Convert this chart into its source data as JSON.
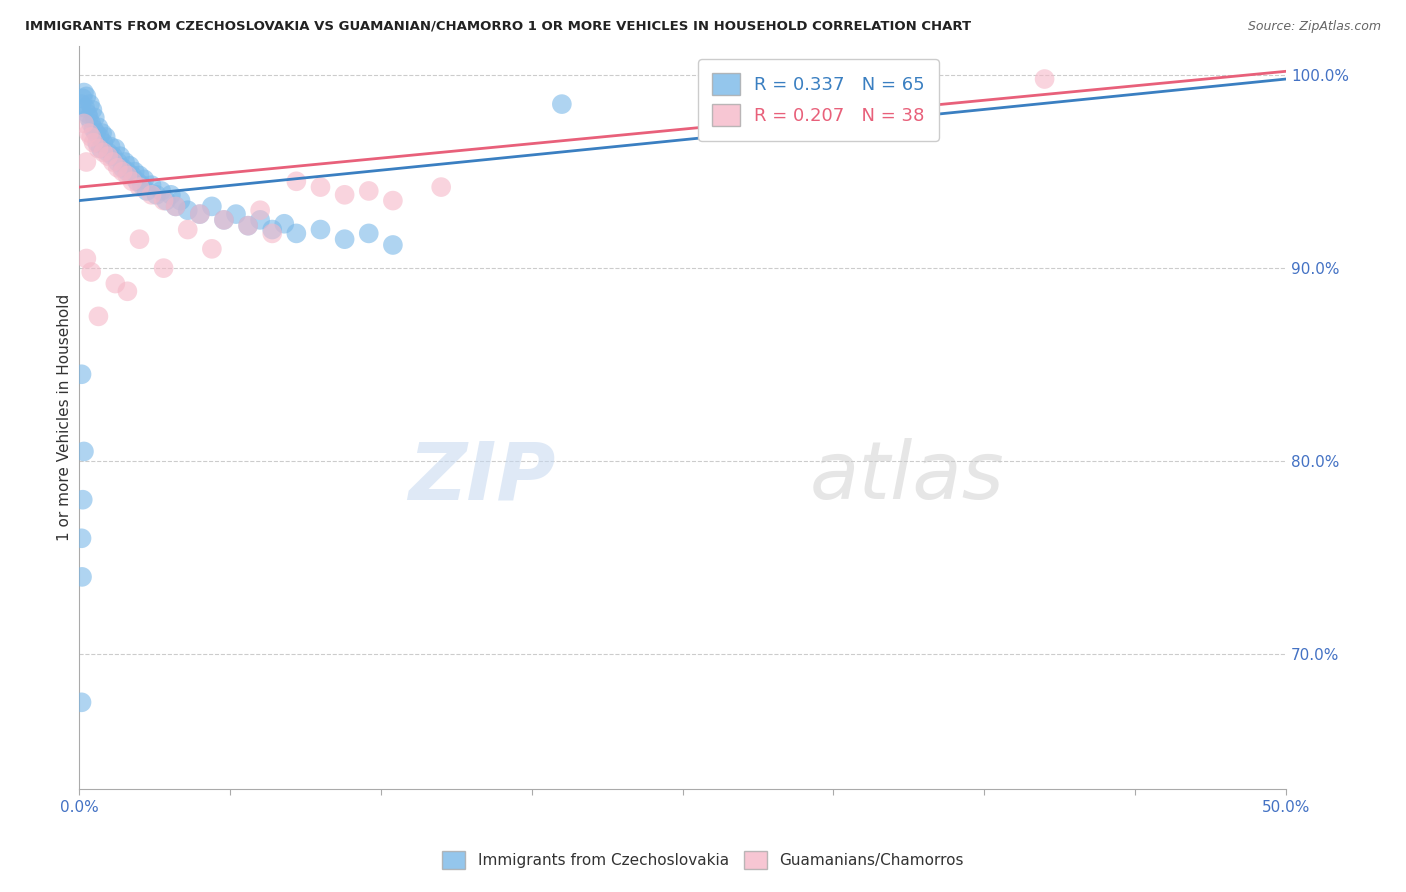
{
  "title": "IMMIGRANTS FROM CZECHOSLOVAKIA VS GUAMANIAN/CHAMORRO 1 OR MORE VEHICLES IN HOUSEHOLD CORRELATION CHART",
  "source": "Source: ZipAtlas.com",
  "ylabel": "1 or more Vehicles in Household",
  "watermark_zip": "ZIP",
  "watermark_atlas": "atlas",
  "legend_blue_label": "R = 0.337   N = 65",
  "legend_pink_label": "R = 0.207   N = 38",
  "legend_x_label": "Immigrants from Czechoslovakia",
  "legend_pink_x_label": "Guamanians/Chamorros",
  "blue_color": "#7ab8e8",
  "pink_color": "#f5b8c8",
  "blue_line_color": "#3a7fc1",
  "pink_line_color": "#e8607a",
  "blue_dots": [
    [
      0.1,
      98.5
    ],
    [
      0.15,
      98.8
    ],
    [
      0.2,
      99.1
    ],
    [
      0.25,
      98.3
    ],
    [
      0.3,
      98.9
    ],
    [
      0.35,
      98.0
    ],
    [
      0.4,
      97.8
    ],
    [
      0.45,
      98.5
    ],
    [
      0.5,
      97.5
    ],
    [
      0.55,
      98.2
    ],
    [
      0.6,
      97.2
    ],
    [
      0.65,
      97.8
    ],
    [
      0.7,
      97.0
    ],
    [
      0.75,
      96.5
    ],
    [
      0.8,
      97.3
    ],
    [
      0.85,
      96.8
    ],
    [
      0.9,
      96.2
    ],
    [
      0.95,
      97.0
    ],
    [
      1.0,
      96.5
    ],
    [
      1.1,
      96.8
    ],
    [
      1.2,
      96.0
    ],
    [
      1.3,
      96.3
    ],
    [
      1.4,
      95.8
    ],
    [
      1.5,
      96.2
    ],
    [
      1.6,
      95.5
    ],
    [
      1.7,
      95.8
    ],
    [
      1.8,
      95.2
    ],
    [
      1.9,
      95.5
    ],
    [
      2.0,
      95.0
    ],
    [
      2.1,
      95.3
    ],
    [
      2.2,
      94.8
    ],
    [
      2.3,
      95.0
    ],
    [
      2.4,
      94.5
    ],
    [
      2.5,
      94.8
    ],
    [
      2.6,
      94.3
    ],
    [
      2.7,
      94.6
    ],
    [
      2.8,
      94.0
    ],
    [
      3.0,
      94.3
    ],
    [
      3.2,
      93.8
    ],
    [
      3.4,
      94.0
    ],
    [
      3.6,
      93.5
    ],
    [
      3.8,
      93.8
    ],
    [
      4.0,
      93.2
    ],
    [
      4.2,
      93.5
    ],
    [
      4.5,
      93.0
    ],
    [
      5.0,
      92.8
    ],
    [
      5.5,
      93.2
    ],
    [
      6.0,
      92.5
    ],
    [
      6.5,
      92.8
    ],
    [
      7.0,
      92.2
    ],
    [
      7.5,
      92.5
    ],
    [
      8.0,
      92.0
    ],
    [
      8.5,
      92.3
    ],
    [
      9.0,
      91.8
    ],
    [
      10.0,
      92.0
    ],
    [
      11.0,
      91.5
    ],
    [
      12.0,
      91.8
    ],
    [
      13.0,
      91.2
    ],
    [
      0.1,
      84.5
    ],
    [
      0.2,
      80.5
    ],
    [
      0.15,
      78.0
    ],
    [
      0.1,
      76.0
    ],
    [
      0.12,
      74.0
    ],
    [
      0.1,
      67.5
    ],
    [
      20.0,
      98.5
    ]
  ],
  "pink_dots": [
    [
      0.2,
      97.5
    ],
    [
      0.4,
      97.0
    ],
    [
      0.5,
      96.8
    ],
    [
      0.6,
      96.5
    ],
    [
      0.8,
      96.2
    ],
    [
      1.0,
      96.0
    ],
    [
      1.2,
      95.8
    ],
    [
      1.4,
      95.5
    ],
    [
      1.6,
      95.2
    ],
    [
      1.8,
      95.0
    ],
    [
      2.0,
      94.8
    ],
    [
      2.2,
      94.5
    ],
    [
      2.5,
      94.2
    ],
    [
      3.0,
      93.8
    ],
    [
      3.5,
      93.5
    ],
    [
      4.0,
      93.2
    ],
    [
      5.0,
      92.8
    ],
    [
      6.0,
      92.5
    ],
    [
      7.0,
      92.2
    ],
    [
      8.0,
      91.8
    ],
    [
      9.0,
      94.5
    ],
    [
      10.0,
      94.2
    ],
    [
      11.0,
      93.8
    ],
    [
      0.3,
      90.5
    ],
    [
      0.5,
      89.8
    ],
    [
      1.5,
      89.2
    ],
    [
      2.0,
      88.8
    ],
    [
      3.5,
      90.0
    ],
    [
      5.5,
      91.0
    ],
    [
      7.5,
      93.0
    ],
    [
      12.0,
      94.0
    ],
    [
      13.0,
      93.5
    ],
    [
      15.0,
      94.2
    ],
    [
      0.8,
      87.5
    ],
    [
      2.5,
      91.5
    ],
    [
      4.5,
      92.0
    ],
    [
      40.0,
      99.8
    ],
    [
      0.3,
      95.5
    ]
  ],
  "xmin": 0.0,
  "xmax": 50.0,
  "ymin": 63.0,
  "ymax": 101.5,
  "right_yticks": [
    70.0,
    80.0,
    90.0,
    100.0
  ],
  "grid_lines": [
    70.0,
    80.0,
    90.0,
    100.0
  ]
}
